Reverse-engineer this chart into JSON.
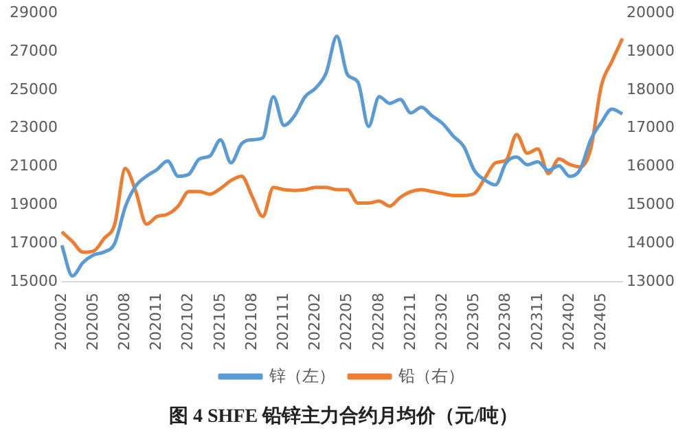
{
  "chart_data": {
    "type": "line",
    "categories": [
      "202002",
      null,
      null,
      "202005",
      null,
      null,
      "202008",
      null,
      null,
      "202011",
      null,
      null,
      "202102",
      null,
      null,
      "202105",
      null,
      null,
      "202108",
      null,
      null,
      "202111",
      null,
      null,
      "202202",
      null,
      null,
      "202205",
      null,
      null,
      "202208",
      null,
      null,
      "202211",
      null,
      null,
      "202302",
      null,
      null,
      "202305",
      null,
      null,
      "202308",
      null,
      null,
      "202311",
      null,
      null,
      "202402",
      null,
      null,
      "202405",
      null,
      null
    ],
    "series": [
      {
        "name": "锌（左）",
        "color": "#5b9bd5",
        "values": [
          16900,
          15300,
          16000,
          16400,
          16550,
          17000,
          18900,
          20000,
          20500,
          20850,
          21300,
          20500,
          20600,
          21400,
          21550,
          22400,
          21200,
          22200,
          22400,
          22500,
          24650,
          23150,
          23650,
          24650,
          25100,
          25900,
          27800,
          25800,
          25400,
          23100,
          24650,
          24300,
          24500,
          23800,
          24100,
          23650,
          23250,
          22600,
          22050,
          20800,
          20300,
          20050,
          21200,
          21500,
          21100,
          21250,
          20800,
          21050,
          20500,
          20850,
          22400,
          23300,
          24000,
          23750
        ]
      },
      {
        "name": "铅（右）",
        "color": "#ed7d31",
        "axis": "y2",
        "values": [
          14300,
          14050,
          13770,
          13800,
          14130,
          14500,
          15950,
          15350,
          14500,
          14700,
          14760,
          14970,
          15350,
          15350,
          15280,
          15430,
          15640,
          15750,
          15220,
          14700,
          15460,
          15400,
          15380,
          15400,
          15460,
          15460,
          15400,
          15400,
          15050,
          15050,
          15100,
          14970,
          15200,
          15350,
          15400,
          15350,
          15300,
          15250,
          15250,
          15300,
          15700,
          16100,
          16170,
          16840,
          16350,
          16460,
          15820,
          16200,
          16060,
          15990,
          16460,
          18100,
          18740,
          19340
        ]
      }
    ],
    "ylim": [
      15000,
      29000
    ],
    "yticks": [
      15000,
      17000,
      19000,
      21000,
      23000,
      25000,
      27000,
      29000
    ],
    "y2lim": [
      13000,
      20000
    ],
    "y2ticks": [
      13000,
      14000,
      15000,
      16000,
      17000,
      18000,
      19000,
      20000
    ],
    "grid": false,
    "legend": "bottom",
    "marker": "none",
    "annotations": [
      "图 4   SHFE 铅锌主力合约月均价（元/吨）"
    ]
  }
}
